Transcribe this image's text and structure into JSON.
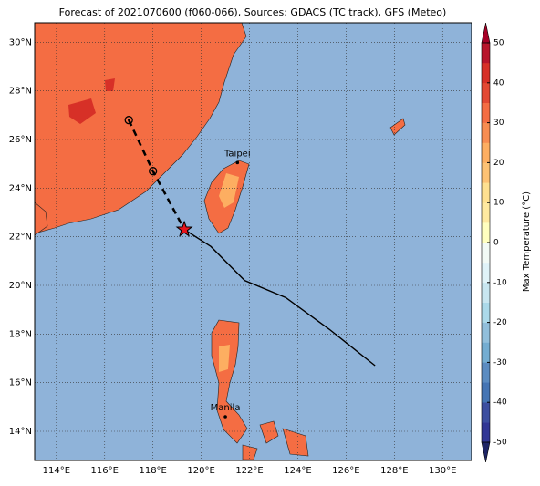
{
  "chart_data": {
    "type": "map",
    "title": "Forecast of 2021070600 (f060-066), Sources: GDACS (TC track), GFS (Meteo)",
    "xlim": [
      113.1,
      131.2
    ],
    "ylim": [
      12.8,
      30.8
    ],
    "xticks": [
      {
        "value": 114,
        "label": "114°E"
      },
      {
        "value": 116,
        "label": "116°E"
      },
      {
        "value": 118,
        "label": "118°E"
      },
      {
        "value": 120,
        "label": "120°E"
      },
      {
        "value": 122,
        "label": "122°E"
      },
      {
        "value": 124,
        "label": "124°E"
      },
      {
        "value": 126,
        "label": "126°E"
      },
      {
        "value": 128,
        "label": "128°E"
      },
      {
        "value": 130,
        "label": "130°E"
      }
    ],
    "yticks": [
      {
        "value": 14,
        "label": "14°N"
      },
      {
        "value": 16,
        "label": "16°N"
      },
      {
        "value": 18,
        "label": "18°N"
      },
      {
        "value": 20,
        "label": "20°N"
      },
      {
        "value": 22,
        "label": "22°N"
      },
      {
        "value": 24,
        "label": "24°N"
      },
      {
        "value": 26,
        "label": "26°N"
      },
      {
        "value": 28,
        "label": "28°N"
      },
      {
        "value": 30,
        "label": "30°N"
      }
    ],
    "grid": true,
    "forecast_track": {
      "lon": [
        117.0,
        118.0,
        119.3
      ],
      "lat": [
        26.8,
        24.7,
        22.3
      ]
    },
    "current_position": {
      "lon": 119.3,
      "lat": 22.3
    },
    "past_track": {
      "lon": [
        119.3,
        120.4,
        121.8,
        123.5,
        125.3,
        127.2
      ],
      "lat": [
        22.3,
        21.6,
        20.2,
        19.5,
        18.2,
        16.7
      ]
    },
    "cities": [
      {
        "name": "Taipei",
        "lon": 121.5,
        "lat": 25.05
      },
      {
        "name": "Manila",
        "lon": 121.0,
        "lat": 14.6
      }
    ],
    "colorbar": {
      "label": "Max Temperature (°C)",
      "lim": [
        -50,
        50
      ],
      "ticks": [
        -50,
        -40,
        -30,
        -20,
        -10,
        0,
        10,
        20,
        30,
        40,
        50
      ],
      "colors": [
        "#313695",
        "#3c4ea0",
        "#4575b4",
        "#5b8cc1",
        "#74add1",
        "#91bfdb",
        "#abd9e9",
        "#c8e6f0",
        "#e0f3f8",
        "#f2faf5",
        "#ffffbf",
        "#fee9a0",
        "#fee090",
        "#fdc274",
        "#fdae61",
        "#f88d51",
        "#f46d43",
        "#e34933",
        "#d73027",
        "#b8152b"
      ],
      "extend_colors": [
        "#1d2465",
        "#a50026"
      ]
    }
  }
}
